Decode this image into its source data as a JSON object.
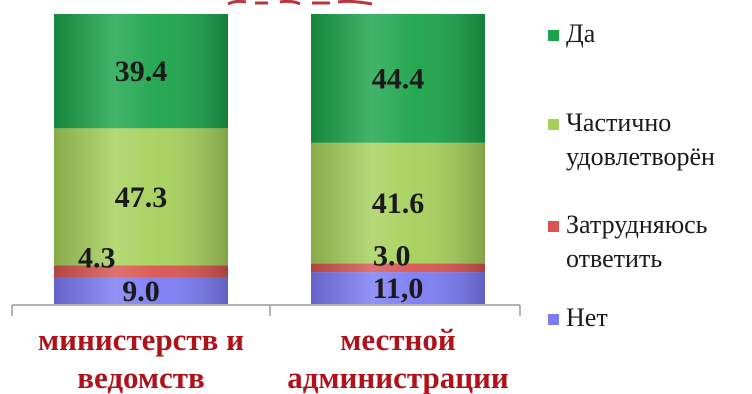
{
  "chart_data": {
    "type": "bar",
    "stacked": true,
    "categories": [
      [
        "министерств и",
        "ведомств"
      ],
      [
        "местной",
        "администрации"
      ]
    ],
    "series": [
      {
        "name": "Нет",
        "color": "#7b7bf5",
        "values": [
          9.0,
          11.0
        ],
        "labels": [
          "9.0",
          "11,0"
        ]
      },
      {
        "name": "Затрудняюсь ответить",
        "color": "#d9534f",
        "values": [
          4.3,
          3.0
        ],
        "labels": [
          "4.3",
          "3.0"
        ]
      },
      {
        "name": "Частично удовлетворён",
        "color": "#a6d05a",
        "values": [
          47.3,
          41.6
        ],
        "labels": [
          "47.3",
          "41.6"
        ]
      },
      {
        "name": "Да",
        "color": "#1aa34a",
        "values": [
          39.4,
          44.4
        ],
        "labels": [
          "39.4",
          "44.4"
        ]
      }
    ],
    "legend": [
      {
        "lines": [
          "Да"
        ],
        "color": "#1aa34a"
      },
      {
        "lines": [
          "Частично",
          "удовлетворён"
        ],
        "color": "#a6d05a"
      },
      {
        "lines": [
          "Затрудняюсь",
          "ответить"
        ],
        "color": "#d9534f"
      },
      {
        "lines": [
          "Нет"
        ],
        "color": "#7b7bf5"
      }
    ],
    "title": "",
    "xlabel": "",
    "ylabel": "",
    "ylim": [
      0,
      100
    ],
    "grid": false,
    "legend_position": "right"
  }
}
